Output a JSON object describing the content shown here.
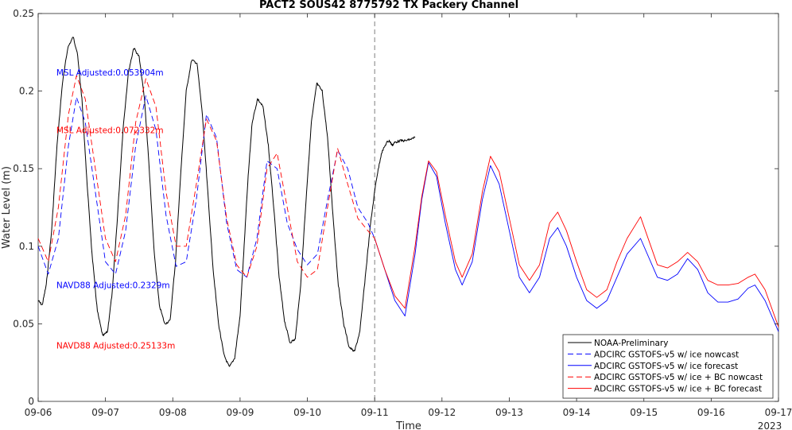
{
  "chart_data": {
    "type": "line",
    "title": "PACT2 SOUS42 8775792 TX Packery Channel",
    "xlabel": "Time",
    "ylabel": "Water Level (m)",
    "xlim": [
      "09-06",
      "09-17"
    ],
    "ylim": [
      0,
      0.25
    ],
    "x_ticks": [
      "09-06",
      "09-07",
      "09-08",
      "09-09",
      "09-10",
      "09-11",
      "09-12",
      "09-13",
      "09-14",
      "09-15",
      "09-16",
      "09-17"
    ],
    "x_year_label": "2023",
    "y_ticks": [
      "0",
      "0.05",
      "0.1",
      "0.15",
      "0.2",
      "0.25"
    ],
    "grid": false,
    "legend_position": "bottom-right",
    "forecast_start": "09-11",
    "annotations": [
      {
        "text": "MSL Adjusted:0.053904m",
        "color": "#0000ff",
        "x_day": 0.27,
        "y": 0.212
      },
      {
        "text": "MSL Adjusted:0.072332m",
        "color": "#ff0000",
        "x_day": 0.27,
        "y": 0.175
      },
      {
        "text": "NAVD88 Adjusted:0.2329m",
        "color": "#0000ff",
        "x_day": 0.27,
        "y": 0.075
      },
      {
        "text": "NAVD88 Adjusted:0.25133m",
        "color": "#ff0000",
        "x_day": 0.27,
        "y": 0.036
      }
    ],
    "series": [
      {
        "name": "NOAA-Preliminary",
        "color": "#000000",
        "dash": "solid",
        "x": [
          0.0,
          0.06,
          0.12,
          0.2,
          0.28,
          0.36,
          0.44,
          0.52,
          0.58,
          0.65,
          0.72,
          0.8,
          0.88,
          0.96,
          1.03,
          1.1,
          1.18,
          1.26,
          1.34,
          1.42,
          1.5,
          1.58,
          1.65,
          1.72,
          1.8,
          1.88,
          1.96,
          2.04,
          2.12,
          2.2,
          2.28,
          2.36,
          2.44,
          2.52,
          2.6,
          2.68,
          2.76,
          2.84,
          2.92,
          3.0,
          3.06,
          3.12,
          3.18,
          3.26,
          3.34,
          3.42,
          3.5,
          3.58,
          3.66,
          3.74,
          3.82,
          3.9,
          3.98,
          4.06,
          4.14,
          4.22,
          4.3,
          4.38,
          4.46,
          4.54,
          4.62,
          4.7,
          4.78,
          4.86,
          4.94,
          5.02,
          5.1,
          5.18,
          5.22,
          5.26,
          5.3,
          5.38,
          5.46,
          5.54,
          5.6
        ],
        "y": [
          0.065,
          0.062,
          0.075,
          0.11,
          0.165,
          0.205,
          0.228,
          0.235,
          0.225,
          0.195,
          0.145,
          0.095,
          0.058,
          0.042,
          0.045,
          0.07,
          0.12,
          0.175,
          0.212,
          0.228,
          0.222,
          0.195,
          0.15,
          0.098,
          0.062,
          0.05,
          0.052,
          0.09,
          0.148,
          0.2,
          0.22,
          0.218,
          0.185,
          0.135,
          0.085,
          0.05,
          0.03,
          0.022,
          0.028,
          0.055,
          0.1,
          0.145,
          0.18,
          0.195,
          0.19,
          0.165,
          0.125,
          0.08,
          0.052,
          0.038,
          0.04,
          0.075,
          0.13,
          0.18,
          0.205,
          0.2,
          0.17,
          0.12,
          0.075,
          0.05,
          0.035,
          0.032,
          0.045,
          0.08,
          0.115,
          0.142,
          0.16,
          0.167,
          0.168,
          0.165,
          0.167,
          0.168,
          0.168,
          0.169,
          0.17
        ]
      },
      {
        "name": "ADCIRC GSTOFS-v5 w/ ice nowcast",
        "color": "#0000ff",
        "dash": "dashed",
        "x": [
          0.0,
          0.15,
          0.3,
          0.45,
          0.57,
          0.7,
          0.85,
          1.0,
          1.15,
          1.3,
          1.45,
          1.6,
          1.75,
          1.9,
          2.05,
          2.2,
          2.35,
          2.5,
          2.65,
          2.8,
          2.95,
          3.1,
          3.25,
          3.4,
          3.55,
          3.7,
          3.85,
          4.0,
          4.15,
          4.3,
          4.45,
          4.6,
          4.75,
          4.9,
          5.0
        ],
        "y": [
          0.1,
          0.082,
          0.105,
          0.165,
          0.196,
          0.18,
          0.135,
          0.09,
          0.082,
          0.11,
          0.165,
          0.197,
          0.175,
          0.12,
          0.087,
          0.09,
          0.13,
          0.185,
          0.17,
          0.115,
          0.085,
          0.08,
          0.105,
          0.155,
          0.15,
          0.115,
          0.098,
          0.088,
          0.095,
          0.13,
          0.162,
          0.15,
          0.125,
          0.115,
          0.105
        ]
      },
      {
        "name": "ADCIRC GSTOFS-v5 w/ ice forecast",
        "color": "#0000ff",
        "dash": "solid",
        "x": [
          5.0,
          5.15,
          5.3,
          5.45,
          5.6,
          5.7,
          5.8,
          5.92,
          6.05,
          6.2,
          6.3,
          6.45,
          6.6,
          6.72,
          6.85,
          7.0,
          7.15,
          7.3,
          7.45,
          7.6,
          7.72,
          7.85,
          8.0,
          8.15,
          8.3,
          8.45,
          8.6,
          8.75,
          8.95,
          9.2,
          9.35,
          9.5,
          9.65,
          9.8,
          9.95,
          10.1,
          10.25,
          10.4,
          10.55,
          10.65,
          10.8,
          11.0
        ],
        "y": [
          0.105,
          0.085,
          0.065,
          0.055,
          0.095,
          0.13,
          0.154,
          0.145,
          0.115,
          0.085,
          0.075,
          0.09,
          0.13,
          0.152,
          0.14,
          0.11,
          0.08,
          0.07,
          0.08,
          0.105,
          0.112,
          0.1,
          0.08,
          0.065,
          0.06,
          0.065,
          0.08,
          0.095,
          0.105,
          0.08,
          0.078,
          0.082,
          0.092,
          0.085,
          0.07,
          0.064,
          0.064,
          0.066,
          0.073,
          0.075,
          0.065,
          0.045
        ]
      },
      {
        "name": "ADCIRC GSTOFS-v5 w/ ice + BC nowcast",
        "color": "#ff0000",
        "dash": "dashed",
        "x": [
          0.0,
          0.15,
          0.3,
          0.45,
          0.57,
          0.7,
          0.85,
          1.0,
          1.15,
          1.3,
          1.45,
          1.6,
          1.75,
          1.9,
          2.05,
          2.2,
          2.35,
          2.5,
          2.65,
          2.8,
          2.95,
          3.1,
          3.25,
          3.4,
          3.55,
          3.7,
          3.85,
          4.0,
          4.15,
          4.3,
          4.45,
          4.6,
          4.75,
          4.9,
          5.0
        ],
        "y": [
          0.105,
          0.09,
          0.125,
          0.185,
          0.21,
          0.195,
          0.15,
          0.105,
          0.09,
          0.12,
          0.18,
          0.208,
          0.19,
          0.135,
          0.1,
          0.1,
          0.14,
          0.182,
          0.168,
          0.118,
          0.088,
          0.08,
          0.1,
          0.15,
          0.16,
          0.125,
          0.09,
          0.08,
          0.085,
          0.125,
          0.163,
          0.14,
          0.118,
          0.11,
          0.105
        ]
      },
      {
        "name": "ADCIRC GSTOFS-v5 w/ ice + BC forecast",
        "color": "#ff0000",
        "dash": "solid",
        "x": [
          5.0,
          5.15,
          5.3,
          5.45,
          5.6,
          5.7,
          5.8,
          5.92,
          6.05,
          6.2,
          6.3,
          6.45,
          6.6,
          6.72,
          6.85,
          7.0,
          7.15,
          7.3,
          7.45,
          7.6,
          7.72,
          7.85,
          8.0,
          8.15,
          8.3,
          8.45,
          8.6,
          8.75,
          8.95,
          9.2,
          9.35,
          9.5,
          9.65,
          9.8,
          9.95,
          10.1,
          10.25,
          10.4,
          10.55,
          10.65,
          10.8,
          11.0
        ],
        "y": [
          0.105,
          0.085,
          0.068,
          0.06,
          0.1,
          0.132,
          0.155,
          0.148,
          0.12,
          0.09,
          0.08,
          0.095,
          0.135,
          0.158,
          0.148,
          0.118,
          0.088,
          0.078,
          0.088,
          0.115,
          0.122,
          0.11,
          0.09,
          0.072,
          0.067,
          0.072,
          0.09,
          0.105,
          0.119,
          0.088,
          0.086,
          0.09,
          0.096,
          0.09,
          0.078,
          0.075,
          0.075,
          0.076,
          0.08,
          0.082,
          0.072,
          0.048
        ]
      }
    ]
  }
}
